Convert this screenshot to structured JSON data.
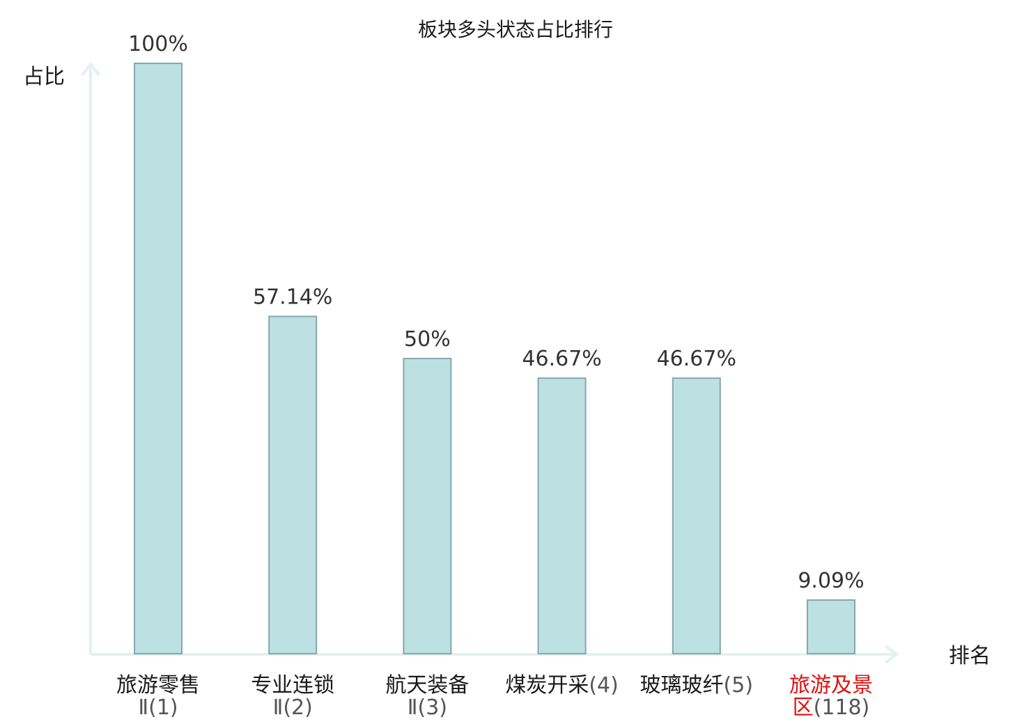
{
  "chart_data": {
    "type": "bar",
    "title": "板块多头状态占比排行",
    "ylabel": "占比",
    "xlabel": "排名",
    "ylim": [
      0,
      100
    ],
    "grid": false,
    "categories": [
      {
        "lines": [
          {
            "main": "旅游零售",
            "suffix": ""
          },
          {
            "main": "",
            "suffix": "Ⅱ(1)"
          }
        ],
        "highlight": false
      },
      {
        "lines": [
          {
            "main": "专业连锁",
            "suffix": ""
          },
          {
            "main": "",
            "suffix": "Ⅱ(2)"
          }
        ],
        "highlight": false
      },
      {
        "lines": [
          {
            "main": "航天装备",
            "suffix": ""
          },
          {
            "main": "",
            "suffix": "Ⅱ(3)"
          }
        ],
        "highlight": false
      },
      {
        "lines": [
          {
            "main": "煤炭开采",
            "suffix": "(4)"
          }
        ],
        "highlight": false
      },
      {
        "lines": [
          {
            "main": "玻璃玻纤",
            "suffix": "(5)"
          }
        ],
        "highlight": false
      },
      {
        "lines": [
          {
            "main": "旅游及景",
            "suffix": ""
          },
          {
            "main": "区",
            "suffix": "(118)"
          }
        ],
        "highlight": true
      }
    ],
    "values": [
      100,
      57.14,
      50,
      46.67,
      46.67,
      9.09
    ],
    "value_labels": [
      "100%",
      "57.14%",
      "50%",
      "46.67%",
      "46.67%",
      "9.09%"
    ]
  },
  "colors": {
    "bar_fill": "#bde0e3",
    "bar_stroke": "#86a7aa",
    "axis": "#e0f2ef",
    "highlight_text": "#e01010",
    "text": "#1a1a1a",
    "value_text": "#333333"
  }
}
